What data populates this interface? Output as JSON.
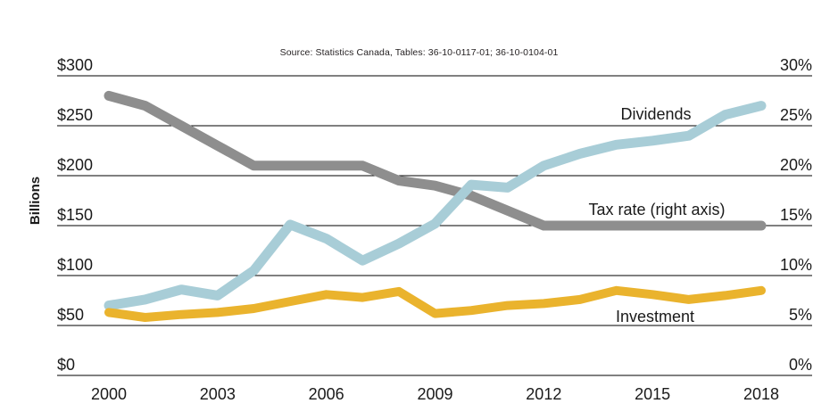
{
  "source_note": "Source: Statistics Canada, Tables: 36-10-0117-01; 36-10-0104-01",
  "chart_data": {
    "type": "line",
    "x": [
      2000,
      2001,
      2002,
      2003,
      2004,
      2005,
      2006,
      2007,
      2008,
      2009,
      2010,
      2011,
      2012,
      2013,
      2014,
      2015,
      2016,
      2017,
      2018
    ],
    "x_tick_labels": [
      "2000",
      "2003",
      "2006",
      "2009",
      "2012",
      "2015",
      "2018"
    ],
    "left_axis": {
      "title": "Billions",
      "ticks": [
        0,
        50,
        100,
        150,
        200,
        250,
        300
      ],
      "tick_labels": [
        "$0",
        "$50",
        "$100",
        "$150",
        "$200",
        "$250",
        "$300"
      ],
      "range": [
        0,
        300
      ]
    },
    "right_axis": {
      "ticks": [
        0,
        5,
        10,
        15,
        20,
        25,
        30
      ],
      "tick_labels": [
        "0%",
        "5%",
        "10%",
        "15%",
        "20%",
        "25%",
        "30%"
      ],
      "range": [
        0,
        30
      ]
    },
    "grid": true,
    "legend": "in-plot text labels",
    "series": [
      {
        "name": "Dividends",
        "axis": "left",
        "unit": "$B",
        "color": "#a8cdd7",
        "values": [
          70,
          76,
          86,
          80,
          105,
          151,
          137,
          115,
          132,
          152,
          191,
          188,
          210,
          222,
          231,
          235,
          240,
          261,
          270
        ]
      },
      {
        "name": "Tax rate (right axis)",
        "axis": "right",
        "unit": "%",
        "color": "#8e8e8e",
        "values": [
          28,
          27,
          25,
          23,
          21,
          21,
          21,
          21,
          19.5,
          19,
          18,
          16.5,
          15,
          15,
          15,
          15,
          15,
          15,
          15
        ]
      },
      {
        "name": "Investment",
        "axis": "left",
        "unit": "$B",
        "color": "#eab32d",
        "values": [
          63,
          58,
          61,
          63,
          67,
          74,
          81,
          78,
          84,
          62,
          65,
          70,
          72,
          76,
          85,
          81,
          76,
          80,
          85
        ]
      }
    ],
    "annotations": [
      {
        "text": "Dividends",
        "x": 735,
        "y": 134
      },
      {
        "text": "Tax rate (right axis)",
        "x": 736,
        "y": 241
      },
      {
        "text": "Investment",
        "x": 734,
        "y": 361
      }
    ]
  }
}
